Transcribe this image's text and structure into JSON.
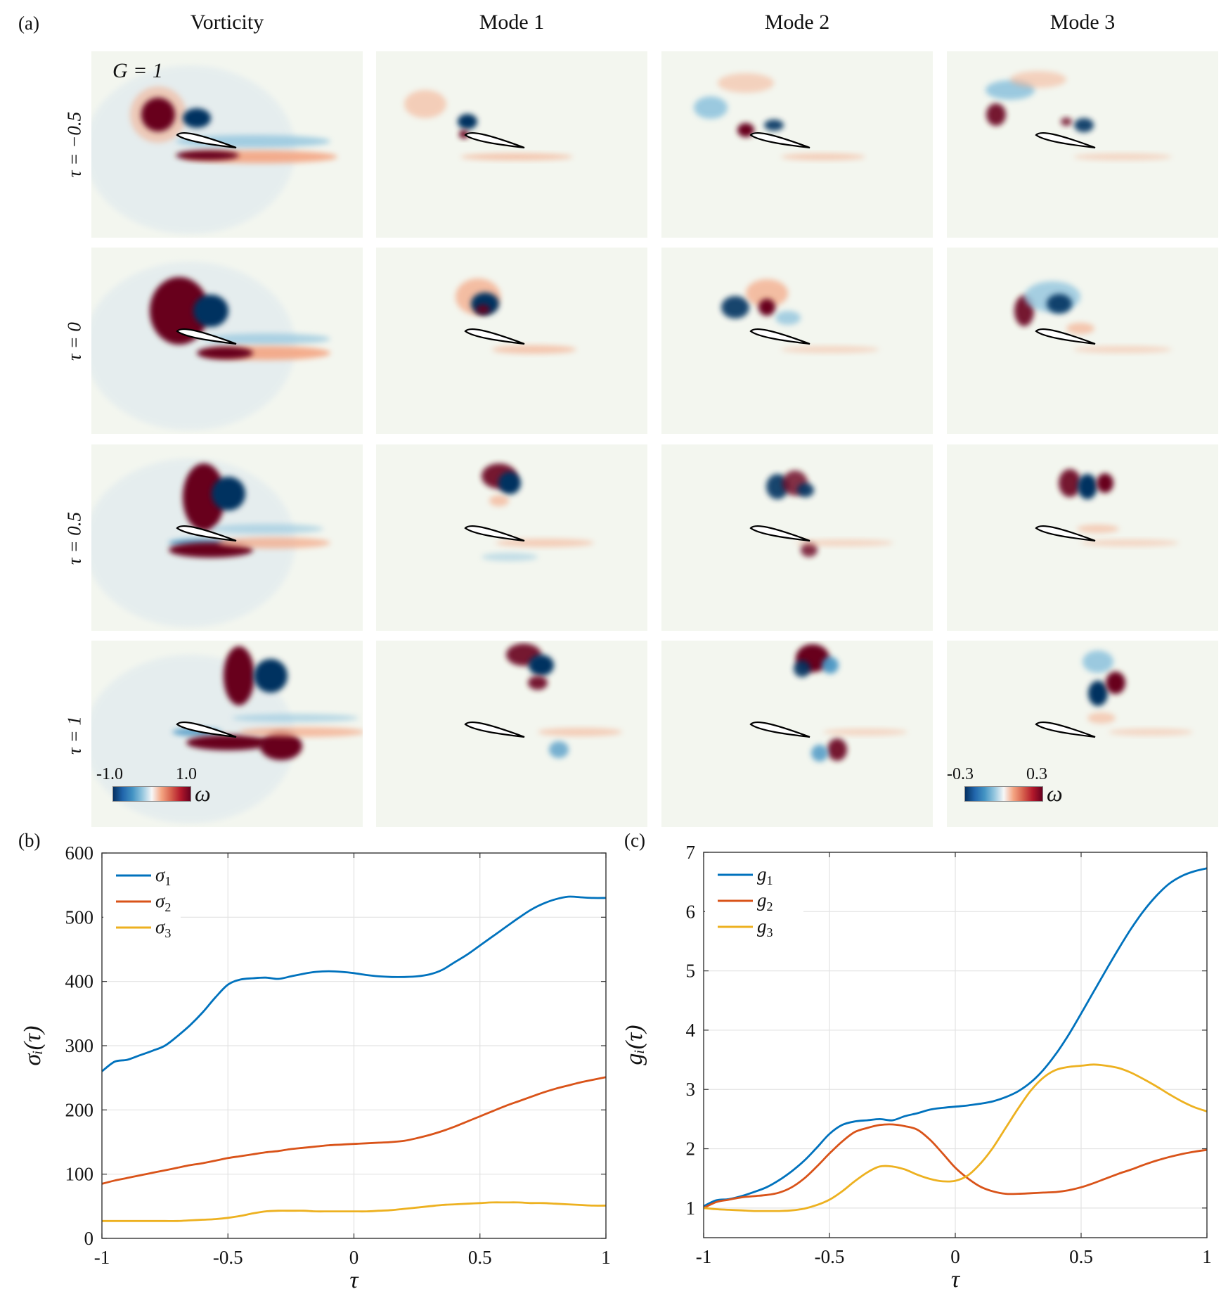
{
  "figure": {
    "panel_a_label": "(a)",
    "panel_b_label": "(b)",
    "panel_c_label": "(c)",
    "column_titles": [
      "Vorticity",
      "Mode 1",
      "Mode 2",
      "Mode 3"
    ],
    "row_labels": [
      "τ = −0.5",
      "τ = 0",
      "τ = 0.5",
      "τ = 1"
    ],
    "gust_ratio_label": "G = 1",
    "colorbar_vorticity": {
      "min_label": "-1.0",
      "max_label": "1.0",
      "symbol": "ω"
    },
    "colorbar_modes": {
      "min_label": "-0.3",
      "max_label": "0.3",
      "symbol": "ω"
    },
    "colormap": [
      "#053061",
      "#2166ac",
      "#4393c3",
      "#92c5de",
      "#f7f7f7",
      "#f4a582",
      "#d6604d",
      "#b2182b",
      "#67001f"
    ]
  },
  "chart_data": [
    {
      "type": "line",
      "id": "b",
      "title": "",
      "xlabel": "τ",
      "ylabel": "σ_i(τ)",
      "xlim": [
        -1,
        1
      ],
      "ylim": [
        0,
        600
      ],
      "xticks": [
        -1,
        -0.5,
        0,
        0.5,
        1
      ],
      "xtick_labels": [
        "-1",
        "-0.5",
        "0",
        "0.5",
        "1"
      ],
      "yticks": [
        0,
        100,
        200,
        300,
        400,
        500,
        600
      ],
      "ytick_labels": [
        "0",
        "100",
        "200",
        "300",
        "400",
        "500",
        "600"
      ],
      "grid": true,
      "legend_position": "top-left",
      "x": [
        -1,
        -0.95,
        -0.9,
        -0.85,
        -0.8,
        -0.75,
        -0.7,
        -0.65,
        -0.6,
        -0.55,
        -0.5,
        -0.45,
        -0.4,
        -0.35,
        -0.3,
        -0.25,
        -0.2,
        -0.15,
        -0.1,
        -0.05,
        0,
        0.05,
        0.1,
        0.15,
        0.2,
        0.25,
        0.3,
        0.35,
        0.4,
        0.45,
        0.5,
        0.55,
        0.6,
        0.65,
        0.7,
        0.75,
        0.8,
        0.85,
        0.9,
        0.95,
        1
      ],
      "series": [
        {
          "name": "σ1",
          "legend_main": "σ",
          "legend_sub": "1",
          "color": "#0072BD",
          "values": [
            260,
            275,
            278,
            285,
            292,
            300,
            315,
            332,
            352,
            375,
            395,
            403,
            405,
            406,
            404,
            408,
            412,
            415,
            416,
            415,
            413,
            410,
            408,
            407,
            407,
            408,
            411,
            418,
            430,
            442,
            456,
            470,
            484,
            498,
            511,
            521,
            528,
            532,
            531,
            530,
            530
          ]
        },
        {
          "name": "σ2",
          "legend_main": "σ",
          "legend_sub": "2",
          "color": "#D95319",
          "values": [
            85,
            90,
            94,
            98,
            102,
            106,
            110,
            114,
            117,
            121,
            125,
            128,
            131,
            134,
            136,
            139,
            141,
            143,
            145,
            146,
            147,
            148,
            149,
            150,
            152,
            156,
            161,
            167,
            174,
            182,
            190,
            198,
            206,
            213,
            220,
            227,
            233,
            238,
            243,
            247,
            251
          ]
        },
        {
          "name": "σ3",
          "legend_main": "σ",
          "legend_sub": "3",
          "color": "#EDB120",
          "values": [
            27,
            27,
            27,
            27,
            27,
            27,
            27,
            28,
            29,
            30,
            32,
            35,
            39,
            42,
            43,
            43,
            43,
            42,
            42,
            42,
            42,
            42,
            43,
            44,
            46,
            48,
            50,
            52,
            53,
            54,
            55,
            56,
            56,
            56,
            55,
            55,
            54,
            53,
            52,
            51,
            51
          ]
        }
      ]
    },
    {
      "type": "line",
      "id": "c",
      "title": "",
      "xlabel": "τ",
      "ylabel": "g_i(τ)",
      "xlim": [
        -1,
        1
      ],
      "ylim": [
        0.5,
        7
      ],
      "xticks": [
        -1,
        -0.5,
        0,
        0.5,
        1
      ],
      "xtick_labels": [
        "-1",
        "-0.5",
        "0",
        "0.5",
        "1"
      ],
      "yticks": [
        1,
        2,
        3,
        4,
        5,
        6,
        7
      ],
      "ytick_labels": [
        "1",
        "2",
        "3",
        "4",
        "5",
        "6",
        "7"
      ],
      "grid": true,
      "legend_position": "top-left",
      "x": [
        -1,
        -0.95,
        -0.9,
        -0.85,
        -0.8,
        -0.75,
        -0.7,
        -0.65,
        -0.6,
        -0.55,
        -0.5,
        -0.45,
        -0.4,
        -0.35,
        -0.3,
        -0.25,
        -0.2,
        -0.15,
        -0.1,
        -0.05,
        0,
        0.05,
        0.1,
        0.15,
        0.2,
        0.25,
        0.3,
        0.35,
        0.4,
        0.45,
        0.5,
        0.55,
        0.6,
        0.65,
        0.7,
        0.75,
        0.8,
        0.85,
        0.9,
        0.95,
        1
      ],
      "series": [
        {
          "name": "g1",
          "legend_main": "g",
          "legend_sub": "1",
          "color": "#0072BD",
          "values": [
            1.03,
            1.13,
            1.15,
            1.2,
            1.27,
            1.35,
            1.47,
            1.62,
            1.8,
            2.02,
            2.25,
            2.4,
            2.46,
            2.48,
            2.5,
            2.48,
            2.55,
            2.6,
            2.66,
            2.69,
            2.71,
            2.73,
            2.76,
            2.8,
            2.87,
            2.97,
            3.12,
            3.33,
            3.6,
            3.92,
            4.28,
            4.65,
            5.02,
            5.38,
            5.72,
            6.02,
            6.27,
            6.47,
            6.6,
            6.68,
            6.73
          ]
        },
        {
          "name": "g2",
          "legend_main": "g",
          "legend_sub": "2",
          "color": "#D95319",
          "values": [
            1.0,
            1.1,
            1.14,
            1.18,
            1.2,
            1.22,
            1.26,
            1.35,
            1.5,
            1.7,
            1.92,
            2.12,
            2.28,
            2.35,
            2.4,
            2.41,
            2.38,
            2.32,
            2.15,
            1.92,
            1.68,
            1.5,
            1.36,
            1.28,
            1.24,
            1.24,
            1.25,
            1.26,
            1.27,
            1.3,
            1.35,
            1.42,
            1.5,
            1.58,
            1.65,
            1.73,
            1.8,
            1.86,
            1.91,
            1.95,
            1.98
          ]
        },
        {
          "name": "g3",
          "legend_main": "g",
          "legend_sub": "3",
          "color": "#EDB120",
          "values": [
            1.0,
            0.98,
            0.97,
            0.96,
            0.95,
            0.95,
            0.95,
            0.96,
            0.99,
            1.05,
            1.14,
            1.28,
            1.45,
            1.6,
            1.7,
            1.7,
            1.65,
            1.56,
            1.49,
            1.45,
            1.46,
            1.55,
            1.75,
            2.02,
            2.35,
            2.68,
            2.98,
            3.2,
            3.33,
            3.38,
            3.4,
            3.42,
            3.4,
            3.36,
            3.28,
            3.17,
            3.05,
            2.92,
            2.8,
            2.7,
            2.63
          ]
        }
      ]
    }
  ]
}
